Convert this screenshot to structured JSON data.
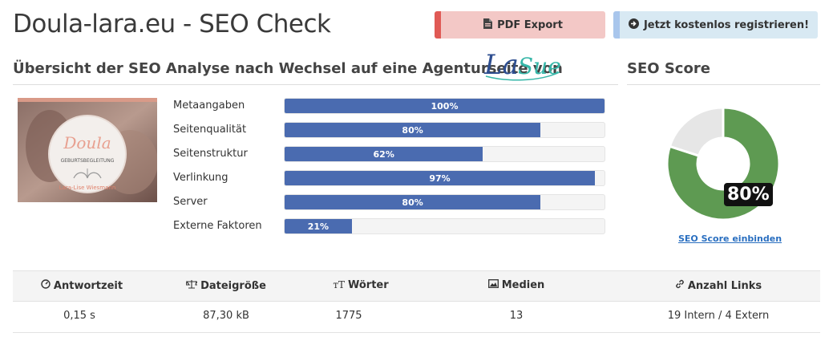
{
  "header": {
    "title": "Doula-lara.eu - SEO Check",
    "pdf_label": "PDF Export",
    "register_label": "Jetzt kostenlos registrieren!"
  },
  "overview": {
    "title": "Übersicht der SEO Analyse nach Wechsel auf eine Agenturseite von",
    "logo_text": "LaSue",
    "thumbnail": {
      "title": "Doula",
      "subtitle": "GEBURTSBEGLEITUNG",
      "caption": "Lara-Lise Wiesmann"
    }
  },
  "metrics": [
    {
      "label": "Metaangaben",
      "value": 100,
      "text": "100%"
    },
    {
      "label": "Seitenqualität",
      "value": 80,
      "text": "80%"
    },
    {
      "label": "Seitenstruktur",
      "value": 62,
      "text": "62%"
    },
    {
      "label": "Verlinkung",
      "value": 97,
      "text": "97%"
    },
    {
      "label": "Server",
      "value": 80,
      "text": "80%"
    },
    {
      "label": "Externe Faktoren",
      "value": 21,
      "text": "21%"
    }
  ],
  "score": {
    "title": "SEO Score",
    "value": 80,
    "text": "80%",
    "link": "SEO Score einbinden",
    "color_fill": "#5e9a52",
    "color_rest": "#e6e6e6"
  },
  "stats": {
    "headers": [
      "Antwortzeit",
      "Dateigröße",
      "Wörter",
      "Medien",
      "Anzahl Links"
    ],
    "values": [
      "0,15 s",
      "87,30 kB",
      "1775",
      "13",
      "19 Intern / 4 Extern"
    ],
    "icons": [
      "gauge-icon",
      "scale-icon",
      "text-size-icon",
      "image-icon",
      "link-icon"
    ]
  }
}
